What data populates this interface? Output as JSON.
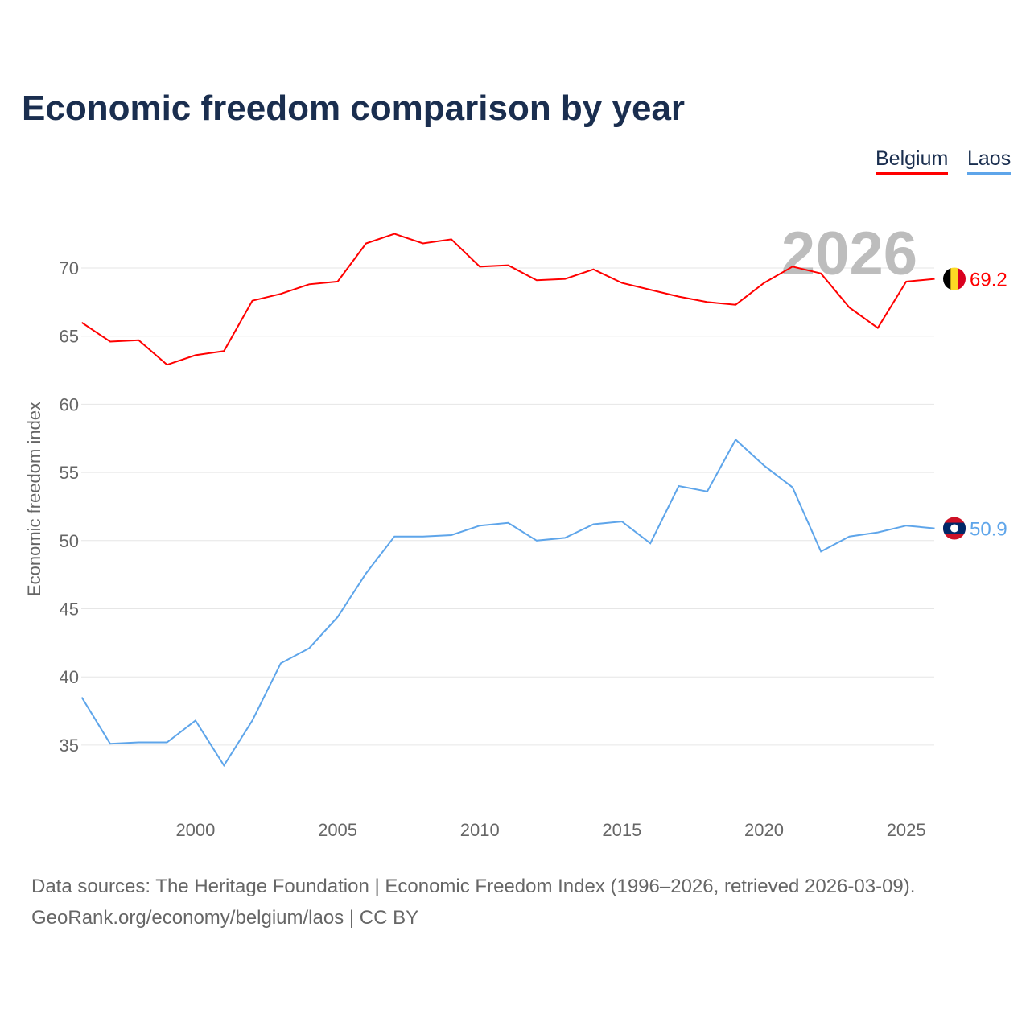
{
  "chart_data": {
    "type": "line",
    "title": "Economic freedom comparison by year",
    "xlabel": "",
    "ylabel": "Economic freedom index",
    "xlim": [
      1996,
      2026
    ],
    "ylim": [
      30,
      74
    ],
    "yticks": [
      35,
      40,
      45,
      50,
      55,
      60,
      65,
      70
    ],
    "xticks": [
      2000,
      2005,
      2010,
      2015,
      2020,
      2025
    ],
    "grid": true,
    "legend_position": "top-right",
    "year_watermark": "2026",
    "x": [
      1996,
      1997,
      1998,
      1999,
      2000,
      2001,
      2002,
      2003,
      2004,
      2005,
      2006,
      2007,
      2008,
      2009,
      2010,
      2011,
      2012,
      2013,
      2014,
      2015,
      2016,
      2017,
      2018,
      2019,
      2020,
      2021,
      2022,
      2023,
      2024,
      2025,
      2026
    ],
    "series": [
      {
        "name": "Belgium",
        "color": "#ff0000",
        "end_label": "69.2",
        "flag": "belgium-flag",
        "values": [
          66.0,
          64.6,
          64.7,
          62.9,
          63.6,
          63.9,
          67.6,
          68.1,
          68.8,
          69.0,
          71.8,
          72.5,
          71.8,
          72.1,
          70.1,
          70.2,
          69.1,
          69.2,
          69.9,
          68.9,
          68.4,
          67.9,
          67.5,
          67.3,
          68.9,
          70.1,
          69.6,
          67.1,
          65.6,
          69.0,
          69.2
        ]
      },
      {
        "name": "Laos",
        "color": "#5ea5ea",
        "end_label": "50.9",
        "flag": "laos-flag",
        "values": [
          38.5,
          35.1,
          35.2,
          35.2,
          36.8,
          33.5,
          36.8,
          41.0,
          42.1,
          44.4,
          47.6,
          50.3,
          50.3,
          50.4,
          51.1,
          51.3,
          50.0,
          50.2,
          51.2,
          51.4,
          49.8,
          54.0,
          53.6,
          57.4,
          55.5,
          53.9,
          49.2,
          50.3,
          50.6,
          51.1,
          50.9
        ]
      }
    ]
  },
  "footer": {
    "line1": "Data sources: The Heritage Foundation | Economic Freedom Index (1996–2026, retrieved 2026-03-09).",
    "line2": "GeoRank.org/economy/belgium/laos | CC BY"
  }
}
